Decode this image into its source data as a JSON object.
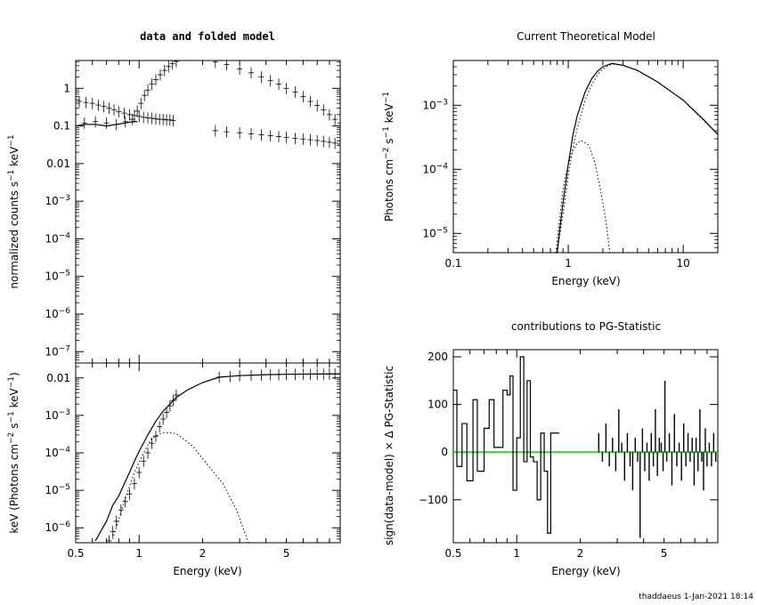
{
  "footer": "thaddaeus   1-Jan-2021  18:14",
  "colors": {
    "zero_line": "#22dd22",
    "ink": "#000000"
  },
  "chart_data": [
    {
      "id": "data_folded",
      "type": "scatter",
      "title": "data and folded model",
      "xlabel": "",
      "ylabel": "normalized counts s^-1 keV^-1",
      "xscale": "log",
      "yscale": "log",
      "xlim": [
        0.5,
        9.0
      ],
      "ylim": [
        5e-08,
        5.5
      ],
      "xticks": [
        0.5,
        1,
        2,
        5
      ],
      "yticks": [
        {
          "v": 1,
          "t": "1"
        },
        {
          "v": 0.1,
          "t": "0.1"
        },
        {
          "v": 0.01,
          "t": "0.01"
        },
        {
          "v": 0.001,
          "t": "10-3"
        },
        {
          "v": 0.0001,
          "t": "10-4"
        },
        {
          "v": 1e-05,
          "t": "10-5"
        },
        {
          "v": 1e-06,
          "t": "10-6"
        },
        {
          "v": 1e-07,
          "t": "10-7"
        }
      ],
      "series": [
        {
          "style": "data",
          "x": [
            0.52,
            0.56,
            0.6,
            0.64,
            0.68,
            0.72,
            0.76,
            0.8,
            0.85,
            0.9,
            0.95,
            1.0,
            1.05,
            1.1,
            1.15,
            1.2,
            1.25,
            1.3,
            1.35,
            1.4,
            1.45
          ],
          "y": [
            0.45,
            0.42,
            0.4,
            0.36,
            0.33,
            0.3,
            0.27,
            0.24,
            0.22,
            0.2,
            0.19,
            0.18,
            0.17,
            0.165,
            0.16,
            0.155,
            0.15,
            0.15,
            0.145,
            0.145,
            0.14
          ]
        },
        {
          "style": "data",
          "x": [
            0.55,
            0.62,
            0.7,
            0.78,
            0.86,
            0.93,
            0.98,
            1.02,
            1.06,
            1.1,
            1.15,
            1.2,
            1.26,
            1.32,
            1.38,
            1.44,
            1.5
          ],
          "y": [
            0.12,
            0.13,
            0.12,
            0.11,
            0.13,
            0.15,
            0.25,
            0.4,
            0.65,
            0.9,
            1.3,
            1.7,
            2.3,
            3.0,
            3.8,
            4.5,
            5.2
          ]
        },
        {
          "style": "data",
          "x": [
            2.3,
            2.6,
            3.0,
            3.4,
            3.8,
            4.2,
            4.6,
            5.0,
            5.5,
            6.0,
            6.5,
            7.0,
            7.5,
            8.0,
            8.5,
            9.0
          ],
          "y": [
            5.0,
            4.3,
            3.3,
            2.6,
            2.0,
            1.6,
            1.3,
            1.0,
            0.8,
            0.6,
            0.45,
            0.35,
            0.27,
            0.2,
            0.15,
            0.12
          ]
        },
        {
          "style": "data",
          "x": [
            2.3,
            2.6,
            3.0,
            3.4,
            3.8,
            4.2,
            4.6,
            5.0,
            5.5,
            6.0,
            6.5,
            7.0,
            7.5,
            8.0,
            8.5,
            9.0
          ],
          "y": [
            0.075,
            0.07,
            0.066,
            0.062,
            0.058,
            0.055,
            0.052,
            0.05,
            0.047,
            0.045,
            0.043,
            0.041,
            0.039,
            0.037,
            0.035,
            0.033
          ]
        },
        {
          "style": "model",
          "x": [
            0.5,
            0.55,
            0.62,
            0.7,
            0.78,
            0.86,
            0.93,
            0.98
          ],
          "y": [
            0.1,
            0.11,
            0.11,
            0.1,
            0.11,
            0.12,
            0.13,
            0.13
          ]
        }
      ]
    },
    {
      "id": "unfolded",
      "type": "scatter",
      "title": "",
      "xlabel": "Energy (keV)",
      "ylabel": "keV (Photons cm^-2 s^-1 keV^-1)",
      "xscale": "log",
      "yscale": "log",
      "xlim": [
        0.5,
        9.0
      ],
      "ylim": [
        4e-07,
        0.025
      ],
      "xticks": [
        0.5,
        1,
        2,
        5
      ],
      "yticks": [
        {
          "v": 0.01,
          "t": "0.01"
        },
        {
          "v": 0.001,
          "t": "10-3"
        },
        {
          "v": 0.0001,
          "t": "10-4"
        },
        {
          "v": 1e-05,
          "t": "10-5"
        },
        {
          "v": 1e-06,
          "t": "10-6"
        }
      ],
      "series": [
        {
          "style": "data",
          "x": [
            0.72,
            0.75,
            0.78,
            0.82,
            0.86,
            0.9,
            0.95,
            1.0,
            1.05,
            1.1,
            1.15,
            1.2,
            1.25,
            1.3,
            1.35,
            1.4,
            1.45,
            1.5
          ],
          "y": [
            4.5e-07,
            8e-07,
            1.5e-06,
            3e-06,
            5e-06,
            8e-06,
            1.5e-05,
            3e-05,
            6e-05,
            0.0001,
            0.00018,
            0.00028,
            0.0005,
            0.0008,
            0.0012,
            0.0018,
            0.0025,
            0.0035
          ]
        },
        {
          "style": "data",
          "x": [
            2.4,
            2.7,
            3.0,
            3.4,
            3.8,
            4.2,
            4.6,
            5.0,
            5.5,
            6.0,
            6.5,
            7.0,
            7.5,
            8.0,
            8.5,
            9.0
          ],
          "y": [
            0.0105,
            0.011,
            0.0115,
            0.0118,
            0.012,
            0.0122,
            0.0123,
            0.0125,
            0.0125,
            0.0126,
            0.0126,
            0.0127,
            0.0127,
            0.0128,
            0.0128,
            0.0128
          ]
        },
        {
          "style": "model",
          "x": [
            0.62,
            0.7,
            0.75,
            0.8,
            0.85,
            0.9,
            0.95,
            1.0,
            1.1,
            1.2,
            1.3,
            1.4,
            1.5,
            1.7,
            2.0,
            2.4,
            3.0,
            4.0,
            5.0,
            7.0,
            9.0
          ],
          "y": [
            4.5e-07,
            1.5e-06,
            4e-06,
            7e-06,
            1.5e-05,
            3e-05,
            6e-05,
            0.00011,
            0.0003,
            0.0007,
            0.0013,
            0.002,
            0.003,
            0.0048,
            0.0075,
            0.0105,
            0.0115,
            0.0122,
            0.0125,
            0.0127,
            0.0128
          ]
        },
        {
          "style": "dotted",
          "x": [
            0.75,
            0.85,
            0.95,
            1.05,
            1.15,
            1.3,
            1.5,
            1.8,
            2.1,
            2.5,
            2.9,
            3.3
          ],
          "y": [
            5e-07,
            5e-06,
            3e-05,
            0.0001,
            0.00025,
            0.00035,
            0.00033,
            0.00015,
            5e-05,
            1.5e-05,
            3e-06,
            4e-07
          ]
        }
      ]
    },
    {
      "id": "model",
      "type": "line",
      "title": "Current Theoretical Model",
      "xlabel": "Energy (keV)",
      "ylabel": "Photons cm^-2 s^-1 keV^-1",
      "xscale": "log",
      "yscale": "log",
      "xlim": [
        0.1,
        20
      ],
      "ylim": [
        5e-06,
        0.005
      ],
      "xticks": [
        0.1,
        1,
        10
      ],
      "yticks": [
        {
          "v": 0.001,
          "t": "10-3"
        },
        {
          "v": 0.0001,
          "t": "10-4"
        },
        {
          "v": 1e-05,
          "t": "10-5"
        }
      ],
      "series": [
        {
          "style": "solid",
          "x": [
            0.8,
            0.85,
            0.9,
            0.95,
            1.0,
            1.1,
            1.2,
            1.4,
            1.6,
            1.8,
            2.0,
            2.4,
            3.0,
            4.0,
            6.0,
            10.0,
            15.0,
            20.0
          ],
          "y": [
            5e-06,
            1.3e-05,
            3e-05,
            6e-05,
            0.00012,
            0.00035,
            0.0007,
            0.0016,
            0.0026,
            0.0034,
            0.004,
            0.0045,
            0.0042,
            0.0035,
            0.0023,
            0.0012,
            0.0006,
            0.00035
          ]
        },
        {
          "style": "dotted",
          "x": [
            0.8,
            0.9,
            1.0,
            1.1,
            1.2,
            1.4,
            1.6,
            1.8,
            2.0,
            2.4,
            3.0,
            4.0,
            6.0,
            10.0,
            20.0
          ],
          "y": [
            5e-06,
            2e-05,
            8e-05,
            0.00022,
            0.00045,
            0.0012,
            0.0021,
            0.003,
            0.0037,
            0.0044,
            0.0042,
            0.0035,
            0.0023,
            0.0012,
            0.00035
          ]
        },
        {
          "style": "dotted",
          "x": [
            0.78,
            0.85,
            0.9,
            1.0,
            1.1,
            1.2,
            1.3,
            1.5,
            1.7,
            1.9,
            2.1,
            2.3
          ],
          "y": [
            5e-06,
            2e-05,
            5e-05,
            0.00012,
            0.0002,
            0.00026,
            0.00028,
            0.00024,
            0.00013,
            5e-05,
            1.8e-05,
            5e-06
          ]
        }
      ]
    },
    {
      "id": "residuals",
      "type": "bar",
      "title": "contributions to PG-Statistic",
      "xlabel": "Energy (keV)",
      "ylabel": "sign(data-model) × Δ PG-Statistic",
      "xscale": "log",
      "yscale": "linear",
      "xlim": [
        0.5,
        9.0
      ],
      "ylim": [
        -190,
        215
      ],
      "xticks": [
        0.5,
        1,
        2,
        5
      ],
      "yticks": [
        {
          "v": 200,
          "t": "200"
        },
        {
          "v": 100,
          "t": "100"
        },
        {
          "v": 0,
          "t": "0"
        },
        {
          "v": -100,
          "t": "-100"
        }
      ],
      "zero_line": 0,
      "series": [
        {
          "style": "step",
          "x": [
            0.5,
            0.52,
            0.55,
            0.58,
            0.62,
            0.65,
            0.7,
            0.74,
            0.78,
            0.82,
            0.86,
            0.9,
            0.93,
            0.96,
            1.0,
            1.04,
            1.08,
            1.12,
            1.16,
            1.2,
            1.25,
            1.3,
            1.35,
            1.4,
            1.45,
            1.5
          ],
          "y": [
            130,
            -30,
            60,
            -60,
            110,
            -40,
            50,
            110,
            10,
            10,
            130,
            120,
            160,
            -80,
            30,
            200,
            -20,
            150,
            -10,
            -20,
            -100,
            40,
            -40,
            -170,
            40,
            40
          ]
        },
        {
          "style": "spikes",
          "x": [
            2.45,
            2.55,
            2.65,
            2.75,
            2.85,
            2.95,
            3.05,
            3.15,
            3.25,
            3.35,
            3.45,
            3.55,
            3.65,
            3.75,
            3.85,
            3.95,
            4.05,
            4.15,
            4.25,
            4.35,
            4.45,
            4.55,
            4.65,
            4.75,
            4.85,
            4.95,
            5.05,
            5.15,
            5.3,
            5.45,
            5.6,
            5.75,
            5.9,
            6.05,
            6.2,
            6.35,
            6.5,
            6.65,
            6.8,
            6.95,
            7.1,
            7.25,
            7.4,
            7.55,
            7.7,
            7.85,
            8.0,
            8.2,
            8.4,
            8.6,
            8.8
          ],
          "y": [
            40,
            -20,
            60,
            -30,
            30,
            -40,
            90,
            20,
            -60,
            40,
            -30,
            -80,
            30,
            -20,
            -180,
            50,
            -40,
            20,
            -60,
            40,
            -30,
            90,
            -50,
            30,
            20,
            -40,
            150,
            -20,
            40,
            -70,
            80,
            -30,
            20,
            -60,
            60,
            -30,
            40,
            -20,
            30,
            -70,
            30,
            -40,
            90,
            -20,
            -80,
            50,
            -30,
            20,
            -30,
            40,
            -20
          ]
        }
      ]
    }
  ]
}
